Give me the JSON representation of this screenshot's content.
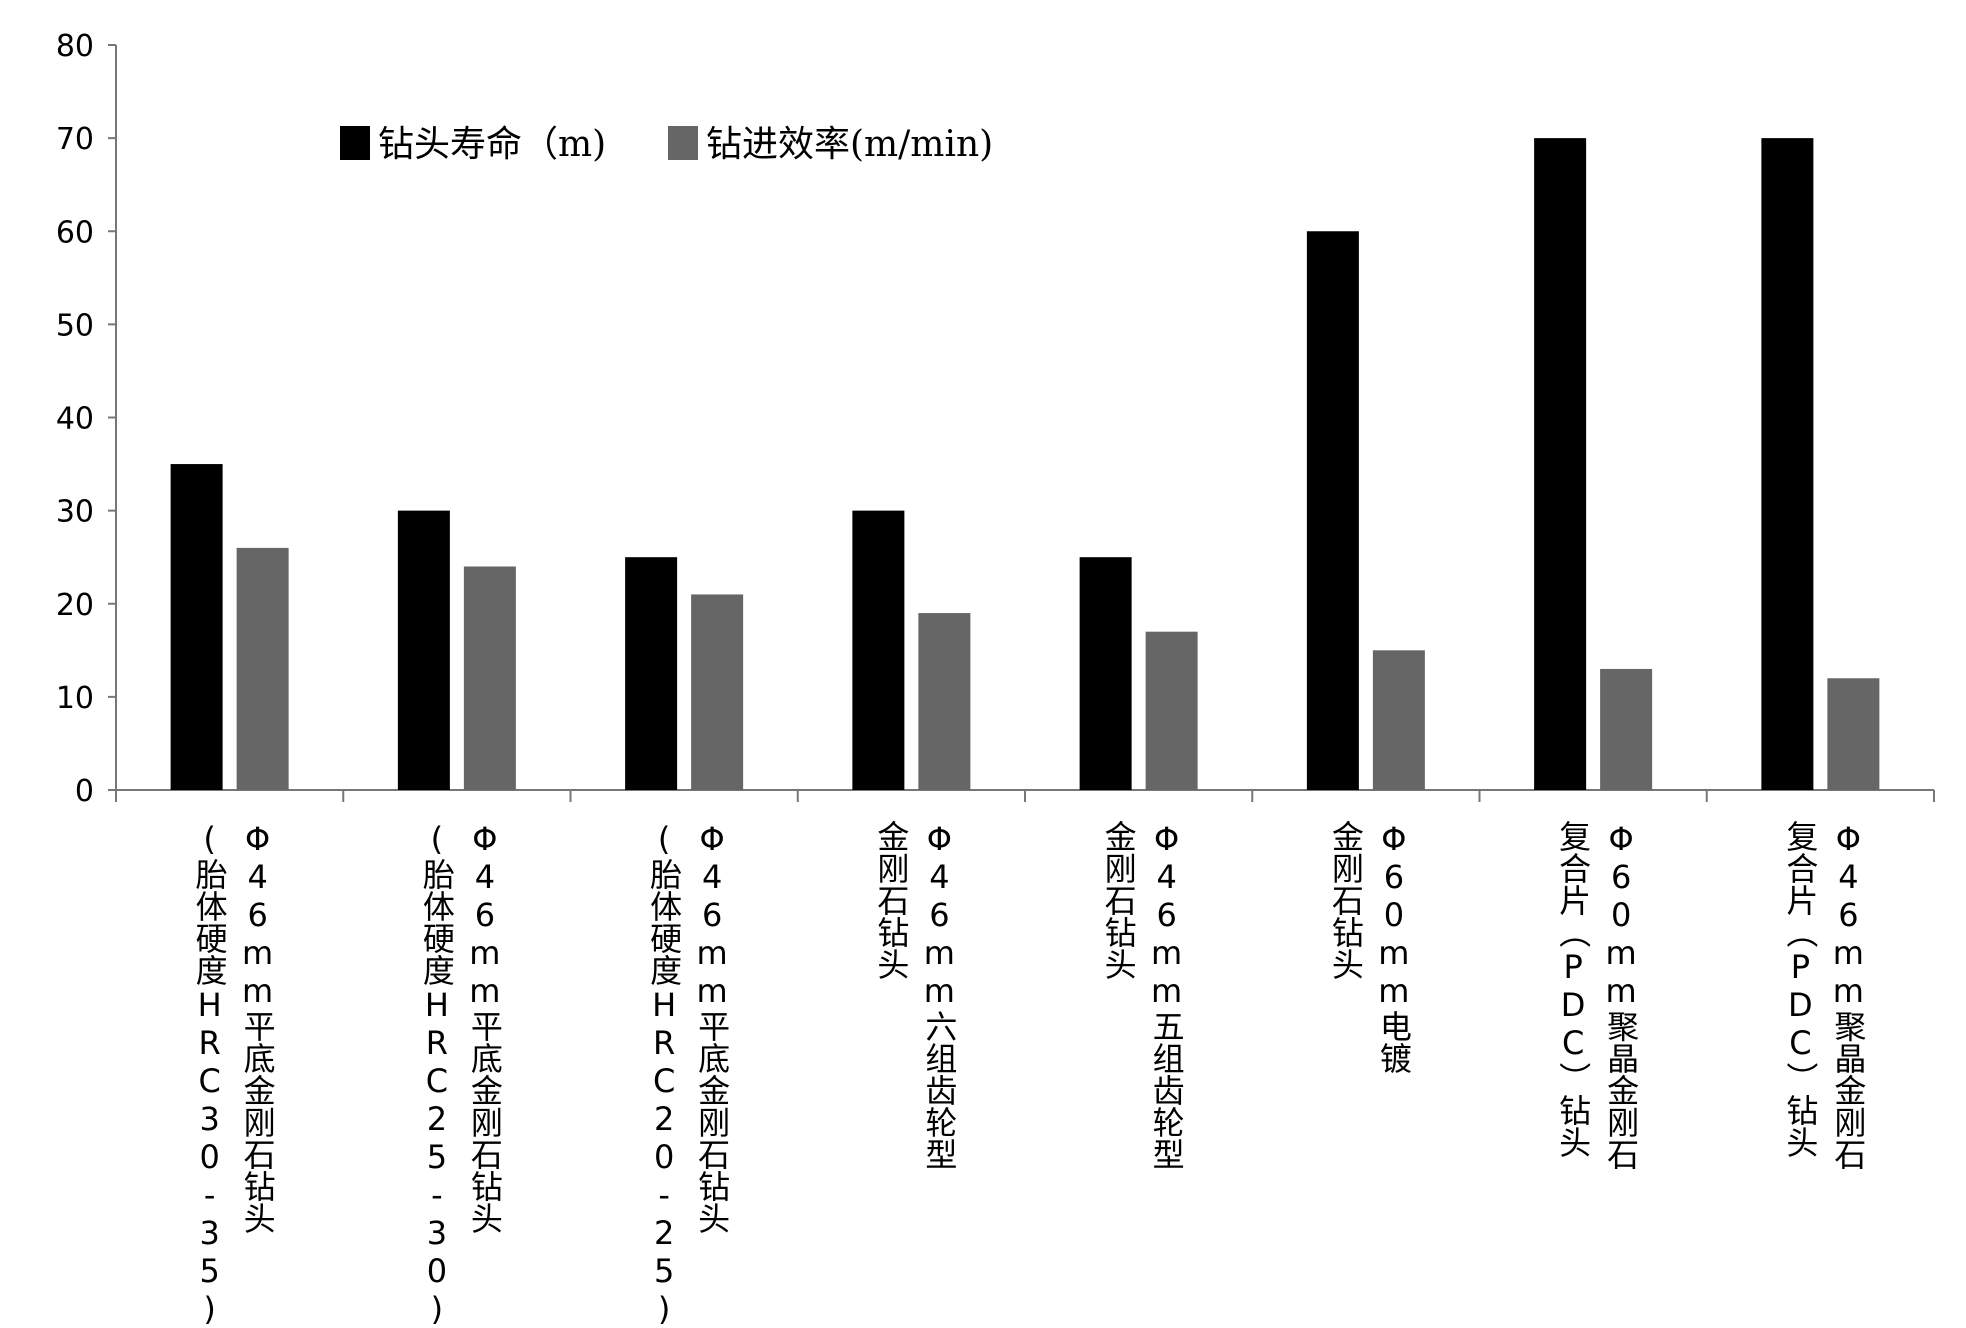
{
  "chart_data": {
    "type": "bar",
    "ylim": [
      0,
      80
    ],
    "yticks": [
      "0",
      "10",
      "20",
      "30",
      "40",
      "50",
      "60",
      "70",
      "80"
    ],
    "categories": [
      [
        "Φ46mm平底金刚石钻头",
        "(胎体硬度HRC30-35)"
      ],
      [
        "Φ46mm平底金刚石钻头",
        "(胎体硬度HRC25-30)"
      ],
      [
        "Φ46mm平底金刚石钻头",
        "(胎体硬度HRC20-25)"
      ],
      [
        "Φ46mm六组齿轮型",
        "金刚石钻头"
      ],
      [
        "Φ46mm五组齿轮型",
        "金刚石钻头"
      ],
      [
        "Φ60mm电镀",
        "金刚石钻头"
      ],
      [
        "Φ60mm聚晶金刚石",
        "复合片（PDC）钻头"
      ],
      [
        "Φ46mm聚晶金刚石",
        "复合片（PDC）钻头"
      ]
    ],
    "series": [
      {
        "name": "钻头寿命（m)",
        "color": "#000000",
        "values": [
          35,
          30,
          25,
          30,
          25,
          60,
          70,
          70
        ]
      },
      {
        "name": "钻进效率(m/min)",
        "color": "#666666",
        "values": [
          26,
          24,
          21,
          19,
          17,
          15,
          13,
          12
        ]
      }
    ],
    "legend_position": "top-left",
    "grid": false
  }
}
